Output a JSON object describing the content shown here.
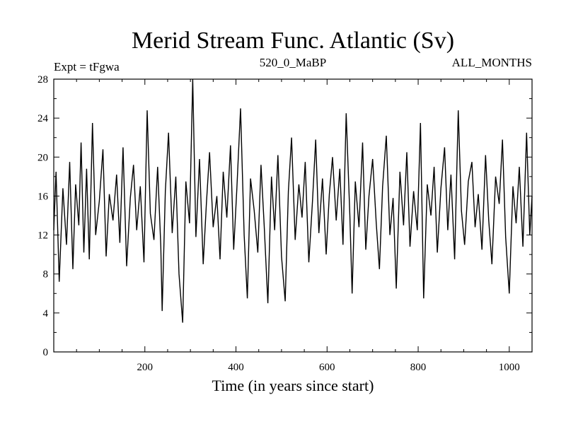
{
  "chart_data": {
    "type": "line",
    "title": "Merid Stream Func. Atlantic (Sv)",
    "subtitle_left": "Expt = tFgwa",
    "subtitle_center": "520_0_MaBP",
    "subtitle_right": "ALL_MONTHS",
    "xlabel": "Time (in years since start)",
    "ylabel": "",
    "xlim": [
      0,
      1050
    ],
    "ylim": [
      0,
      28
    ],
    "xticks": [
      200,
      400,
      600,
      800,
      1000
    ],
    "yticks": [
      0,
      4,
      8,
      12,
      16,
      20,
      24,
      28
    ],
    "grid": false,
    "series": [
      {
        "x": [
          0,
          5,
          12,
          20,
          28,
          35,
          42,
          48,
          55,
          60,
          66,
          72,
          78,
          85,
          92,
          100,
          108,
          115,
          122,
          130,
          138,
          145,
          152,
          160,
          168,
          175,
          182,
          190,
          198,
          205,
          212,
          220,
          228,
          235,
          238,
          245,
          252,
          260,
          268,
          275,
          283,
          290,
          298,
          305,
          312,
          320,
          328,
          335,
          342,
          350,
          358,
          365,
          372,
          380,
          388,
          395,
          402,
          410,
          418,
          425,
          432,
          440,
          448,
          455,
          462,
          470,
          478,
          485,
          492,
          500,
          508,
          515,
          522,
          530,
          538,
          545,
          552,
          560,
          568,
          575,
          582,
          590,
          598,
          605,
          612,
          620,
          628,
          635,
          642,
          650,
          655,
          662,
          670,
          678,
          685,
          692,
          700,
          708,
          715,
          722,
          730,
          738,
          745,
          752,
          760,
          768,
          775,
          782,
          790,
          798,
          805,
          812,
          820,
          828,
          835,
          842,
          850,
          858,
          865,
          872,
          880,
          888,
          895,
          902,
          910,
          918,
          925,
          932,
          940,
          948,
          955,
          962,
          970,
          978,
          985,
          992,
          1000,
          1008,
          1015,
          1022,
          1030,
          1038,
          1045,
          1050
        ],
        "y": [
          12.5,
          18.5,
          7.2,
          16.8,
          11.0,
          19.5,
          8.5,
          17.2,
          13.0,
          21.5,
          10.2,
          18.8,
          9.5,
          23.5,
          12.0,
          15.5,
          20.8,
          9.8,
          16.2,
          13.5,
          18.2,
          11.2,
          21.0,
          8.8,
          15.8,
          19.2,
          12.5,
          17.0,
          9.2,
          24.8,
          14.2,
          11.5,
          19.0,
          10.8,
          4.2,
          16.5,
          22.5,
          12.2,
          18.0,
          8.0,
          3.0,
          17.5,
          13.2,
          28.0,
          11.8,
          19.8,
          9.0,
          15.2,
          20.5,
          12.8,
          16.0,
          9.5,
          18.5,
          13.8,
          21.2,
          10.5,
          16.8,
          25.0,
          12.0,
          5.5,
          17.8,
          14.5,
          10.2,
          19.2,
          13.0,
          5.0,
          18.0,
          12.5,
          20.2,
          9.8,
          5.2,
          16.5,
          22.0,
          11.5,
          17.2,
          13.8,
          19.5,
          9.2,
          15.5,
          21.8,
          12.2,
          17.8,
          10.0,
          16.2,
          20.0,
          13.5,
          18.8,
          11.0,
          24.5,
          14.0,
          6.0,
          17.5,
          12.8,
          21.5,
          10.5,
          16.0,
          19.8,
          13.2,
          8.5,
          17.0,
          22.2,
          12.0,
          15.8,
          6.5,
          18.5,
          13.0,
          20.5,
          10.8,
          16.5,
          12.5,
          23.5,
          5.5,
          17.2,
          14.0,
          19.0,
          10.2,
          16.8,
          21.0,
          12.5,
          18.2,
          9.5,
          24.8,
          14.5,
          11.0,
          17.5,
          19.5,
          12.8,
          16.2,
          10.5,
          20.2,
          13.5,
          9.0,
          18.0,
          15.2,
          21.8,
          11.8,
          6.0,
          17.0,
          13.2,
          19.0,
          10.8,
          22.5,
          12.0,
          16.0
        ]
      }
    ]
  }
}
